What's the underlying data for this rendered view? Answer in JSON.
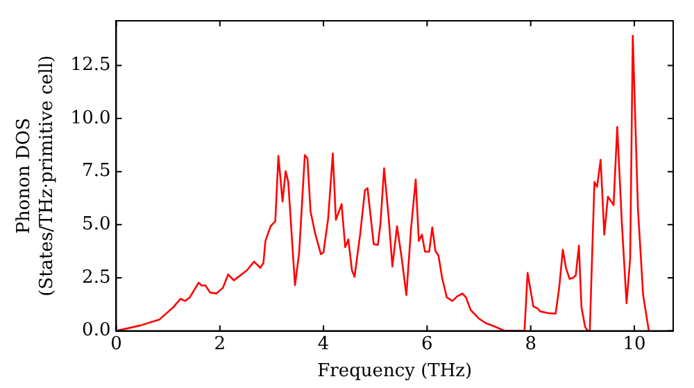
{
  "chart_data": {
    "type": "line",
    "xlabel": "Frequency (THz)",
    "ylabel": "Phonon DOS\n(States/THz·primitive cell)",
    "xlim": [
      0,
      10.75
    ],
    "ylim": [
      0,
      14.6
    ],
    "xticks": [
      0,
      2,
      4,
      6,
      8,
      10
    ],
    "yticks": [
      {
        "value": 0,
        "label": "0.0"
      },
      2.5,
      {
        "value": 5,
        "label": "5.0"
      },
      7.5,
      {
        "value": 10,
        "label": "10.0"
      },
      12.5
    ],
    "grid": false,
    "legend": false,
    "marker": "none",
    "line_style": "solid",
    "series": [
      {
        "color": "#ff0000",
        "x": [
          0,
          0.47,
          0.83,
          1.1,
          1.24,
          1.33,
          1.42,
          1.59,
          1.65,
          1.72,
          1.81,
          1.93,
          2.06,
          2.16,
          2.27,
          2.52,
          2.66,
          2.78,
          2.84,
          2.88,
          2.98,
          3.07,
          3.13,
          3.21,
          3.27,
          3.32,
          3.45,
          3.53,
          3.64,
          3.69,
          3.75,
          3.84,
          3.95,
          4.0,
          4.09,
          4.18,
          4.24,
          4.35,
          4.42,
          4.48,
          4.55,
          4.6,
          4.71,
          4.8,
          4.85,
          4.97,
          5.05,
          5.1,
          5.17,
          5.26,
          5.33,
          5.42,
          5.51,
          5.6,
          5.69,
          5.78,
          5.84,
          5.9,
          5.96,
          6.04,
          6.1,
          6.16,
          6.22,
          6.29,
          6.38,
          6.49,
          6.58,
          6.68,
          6.75,
          6.84,
          6.99,
          7.13,
          7.32,
          7.5,
          7.88,
          7.94,
          8.05,
          8.14,
          8.18,
          8.36,
          8.48,
          8.55,
          8.62,
          8.68,
          8.75,
          8.82,
          8.87,
          8.93,
          8.98,
          9.05,
          9.1,
          9.14,
          9.23,
          9.28,
          9.35,
          9.42,
          9.49,
          9.6,
          9.67,
          9.76,
          9.85,
          9.92,
          9.97,
          10.07,
          10.17,
          10.28
        ],
        "values": [
          0,
          0.26,
          0.53,
          1.11,
          1.51,
          1.41,
          1.58,
          2.27,
          2.13,
          2.15,
          1.81,
          1.76,
          2.03,
          2.66,
          2.38,
          2.85,
          3.26,
          2.97,
          3.19,
          4.24,
          4.93,
          5.16,
          8.24,
          6.09,
          7.52,
          7.01,
          2.15,
          3.66,
          8.28,
          8.13,
          5.63,
          4.58,
          3.61,
          3.7,
          5.28,
          8.35,
          5.23,
          5.97,
          3.94,
          4.31,
          2.85,
          2.55,
          4.58,
          6.62,
          6.72,
          4.08,
          4.05,
          5.05,
          7.66,
          5.28,
          3.03,
          4.93,
          3.42,
          1.69,
          4.81,
          7.13,
          4.24,
          4.53,
          3.73,
          3.73,
          4.88,
          3.77,
          3.54,
          2.5,
          1.58,
          1.41,
          1.62,
          1.76,
          1.58,
          0.99,
          0.6,
          0.37,
          0.19,
          0,
          0,
          2.73,
          1.16,
          1.04,
          0.92,
          0.83,
          0.81,
          2.03,
          3.82,
          2.97,
          2.45,
          2.5,
          2.62,
          4.01,
          1.11,
          0.19,
          0,
          0,
          7.01,
          6.78,
          8.06,
          4.53,
          6.32,
          5.92,
          9.6,
          5.05,
          1.3,
          3.42,
          13.9,
          5.74,
          1.69,
          0
        ]
      }
    ]
  }
}
